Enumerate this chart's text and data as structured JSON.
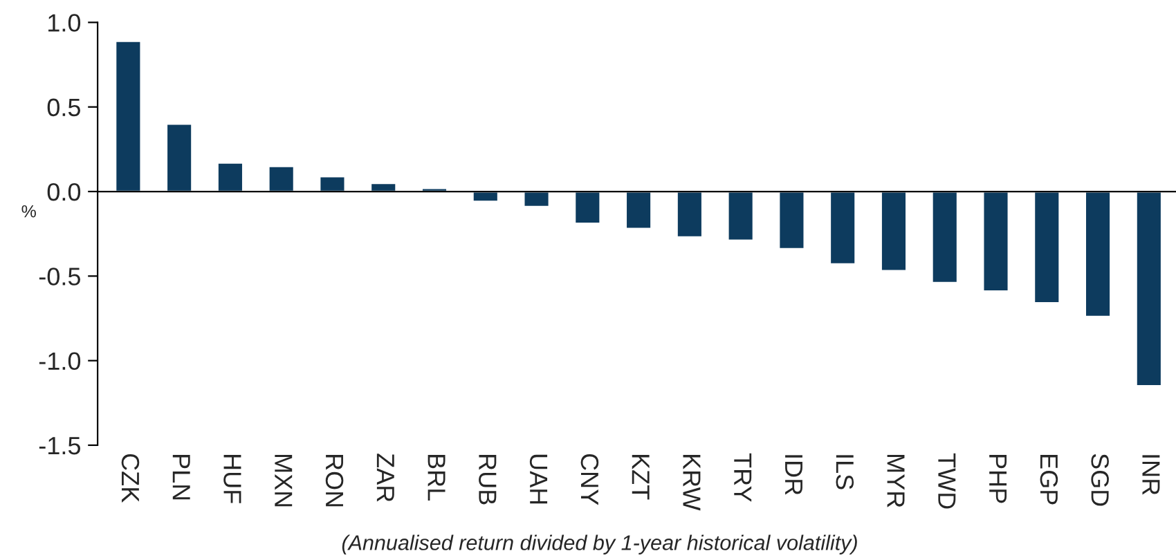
{
  "chart_data": {
    "type": "bar",
    "ylabel": "%",
    "categories": [
      "CZK",
      "PLN",
      "HUF",
      "MXN",
      "RON",
      "ZAR",
      "BRL",
      "RUB",
      "UAH",
      "CNY",
      "KZT",
      "KRW",
      "TRY",
      "IDR",
      "ILS",
      "MYR",
      "TWD",
      "PHP",
      "EGP",
      "SGD",
      "INR"
    ],
    "values": [
      0.89,
      0.4,
      0.17,
      0.15,
      0.09,
      0.05,
      0.02,
      -0.06,
      -0.09,
      -0.19,
      -0.22,
      -0.27,
      -0.29,
      -0.34,
      -0.43,
      -0.47,
      -0.54,
      -0.59,
      -0.66,
      -0.74,
      -1.15
    ],
    "color": "#0d3b5e",
    "ylim": [
      -1.5,
      1.0
    ],
    "yticks": [
      {
        "value": -1.5,
        "label": "-1.5"
      },
      {
        "value": -1.0,
        "label": "-1.0"
      },
      {
        "value": -0.5,
        "label": "-0.5"
      },
      {
        "value": 0.0,
        "label": "0.0"
      },
      {
        "value": 0.5,
        "label": "0.5"
      },
      {
        "value": 1.0,
        "label": "1.0"
      }
    ],
    "annotations": [
      "(Annualised return divided by 1-year historical volatility)"
    ]
  }
}
